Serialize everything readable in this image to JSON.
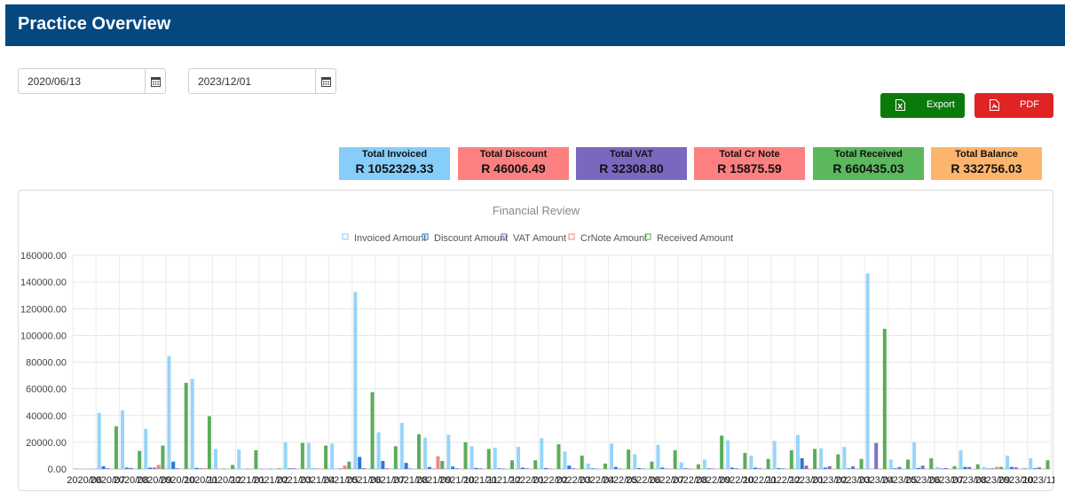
{
  "header": {
    "title": "Practice Overview"
  },
  "filters": {
    "from_date": "2020/06/13",
    "to_date": "2023/12/01"
  },
  "buttons": {
    "export_label": "Export",
    "pdf_label": "PDF"
  },
  "summary_cards": [
    {
      "title": "Total Invoiced",
      "value": "R 1052329.33",
      "color": "#86cdf9"
    },
    {
      "title": "Total Discount",
      "value": "R 46006.49",
      "color": "#fc8080"
    },
    {
      "title": "Total VAT",
      "value": "R 32308.80",
      "color": "#7a68c0"
    },
    {
      "title": "Total Cr Note",
      "value": "R 15875.59",
      "color": "#fc8080"
    },
    {
      "title": "Total Received",
      "value": "R 660435.03",
      "color": "#5cb85c"
    },
    {
      "title": "Total Balance",
      "value": "R 332756.03",
      "color": "#fdb56e"
    }
  ],
  "colors": {
    "header": "#04487f",
    "invoiced": "#86cdf9",
    "discount": "#2271d1",
    "vat": "#7a68c0",
    "crnote": "#f08080",
    "received": "#52a852"
  },
  "chart_data": {
    "type": "bar",
    "title": "Financial Review",
    "ylim": [
      0,
      160000
    ],
    "yticks": [
      "0.00",
      "20000.00",
      "40000.00",
      "60000.00",
      "80000.00",
      "100000.00",
      "120000.00",
      "140000.00",
      "160000.00"
    ],
    "legend_position": "top",
    "categories": [
      "2020/06",
      "2020/07",
      "2020/08",
      "2020/09",
      "2020/10",
      "2020/11",
      "2020/12",
      "2021/01",
      "2021/02",
      "2021/03",
      "2021/04",
      "2021/05",
      "2021/06",
      "2021/07",
      "2021/08",
      "2021/09",
      "2021/10",
      "2021/11",
      "2021/12",
      "2022/01",
      "2022/02",
      "2022/03",
      "2022/04",
      "2022/05",
      "2022/06",
      "2022/07",
      "2022/08",
      "2022/09",
      "2022/10",
      "2022/11",
      "2022/12",
      "2023/01",
      "2023/02",
      "2023/03",
      "2023/04",
      "2023/05",
      "2023/06",
      "2023/07",
      "2023/08",
      "2023/09",
      "2023/10",
      "2023/11"
    ],
    "series": [
      {
        "name": "Invoiced Amount",
        "values": [
          500,
          42000,
          44000,
          30000,
          84500,
          67500,
          15000,
          14500,
          500,
          20000,
          19500,
          19000,
          132500,
          27500,
          34500,
          23500,
          25500,
          17000,
          16000,
          16500,
          23000,
          13000,
          4000,
          19000,
          11000,
          18000,
          5000,
          7000,
          21500,
          10000,
          21000,
          25500,
          15500,
          16500,
          146500,
          7000,
          20000,
          1500,
          14000,
          1500,
          10000,
          8000
        ]
      },
      {
        "name": "Discount Amount",
        "values": [
          0,
          2000,
          1000,
          1000,
          5500,
          800,
          0,
          0,
          0,
          500,
          300,
          0,
          9000,
          6000,
          4500,
          1500,
          1800,
          800,
          500,
          1000,
          700,
          2500,
          500,
          1500,
          700,
          1000,
          500,
          500,
          1000,
          1000,
          700,
          8000,
          1000,
          500,
          0,
          500,
          800,
          400,
          1500,
          300,
          1500,
          500
        ]
      },
      {
        "name": "VAT Amount",
        "values": [
          0,
          500,
          800,
          1000,
          500,
          500,
          200,
          200,
          200,
          500,
          300,
          400,
          600,
          500,
          400,
          300,
          500,
          500,
          200,
          500,
          300,
          500,
          200,
          300,
          300,
          300,
          200,
          300,
          500,
          500,
          400,
          2500,
          2000,
          2000,
          19500,
          1500,
          2500,
          700,
          1500,
          500,
          1200,
          1200
        ]
      },
      {
        "name": "CrNote Amount",
        "values": [
          0,
          0,
          0,
          3000,
          0,
          500,
          0,
          0,
          0,
          0,
          0,
          2500,
          0,
          0,
          0,
          9500,
          0,
          0,
          0,
          0,
          0,
          0,
          0,
          0,
          0,
          0,
          0,
          0,
          0,
          0,
          0,
          0,
          0,
          0,
          0,
          0,
          0,
          0,
          0,
          1500,
          0,
          0
        ]
      },
      {
        "name": "Received Amount",
        "values": [
          0,
          32000,
          13500,
          17500,
          64500,
          39500,
          3000,
          14000,
          500,
          19500,
          17500,
          5500,
          57500,
          17000,
          26000,
          6000,
          20000,
          15000,
          6500,
          6500,
          18500,
          10000,
          4000,
          14500,
          5500,
          14000,
          3500,
          25000,
          12000,
          7500,
          14000,
          15000,
          11000,
          7500,
          105000,
          7000,
          8000,
          2000,
          3500,
          1500,
          500,
          6500
        ]
      }
    ]
  }
}
